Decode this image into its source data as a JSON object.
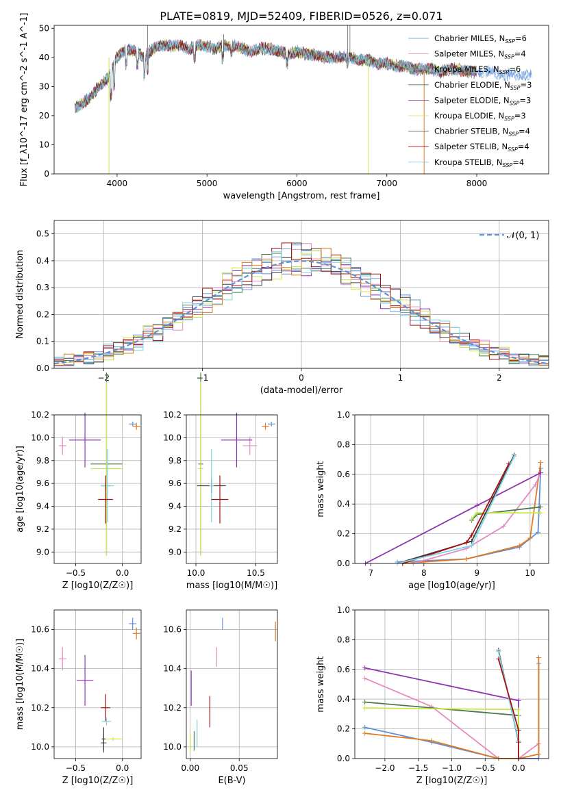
{
  "figure": {
    "title": "PLATE=0819, MJD=52409, FIBERID=0526, z=0.071"
  },
  "colors": {
    "chabrier_miles": "#5f8fd7",
    "salpeter_miles": "#e58ac0",
    "kroupa_miles": "#6b9fdf",
    "chabrier_elodie": "#4b7a4b",
    "salpeter_elodie": "#8e32b0",
    "kroupa_elodie": "#c9e64a",
    "chabrier_stelib": "#3a3a3a",
    "salpeter_stelib": "#a41212",
    "kroupa_stelib": "#7fd3e6",
    "orange": "#e07a21",
    "gauss": "#5b8fd6"
  },
  "chart_data": [
    {
      "id": "spectrum",
      "type": "line",
      "title": "PLATE=0819, MJD=52409, FIBERID=0526, z=0.071",
      "xlabel": "wavelength [Angstrom, rest frame]",
      "ylabel": "Flux [f_λ10^-17 erg cm^-2 s^-1 A^-1]",
      "xlim": [
        3300,
        8800
      ],
      "ylim": [
        0,
        51
      ],
      "xticks": [
        4000,
        5000,
        6000,
        7000,
        8000
      ],
      "yticks": [
        0,
        10,
        20,
        30,
        40,
        50
      ],
      "grid": false,
      "legend_position": "top-right",
      "x": [
        3530,
        3600,
        3700,
        3800,
        3900,
        4000,
        4100,
        4200,
        4300,
        4400,
        4500,
        4600,
        4700,
        4800,
        4900,
        5000,
        5100,
        5200,
        5300,
        5400,
        5500,
        5600,
        5700,
        5800,
        5900,
        6000,
        6100,
        6200,
        6300,
        6400,
        6500,
        6600,
        6700,
        6800,
        6900,
        7000,
        7100,
        7200,
        7300,
        7400,
        7500,
        7600,
        7700,
        7800,
        7900,
        8000,
        8100,
        8200,
        8300,
        8400,
        8500,
        8600,
        8620
      ],
      "series": [
        {
          "name": "Chabrier MILES, N_SSP=6",
          "values": [
            23,
            24,
            26,
            30,
            33,
            40,
            43,
            42,
            40,
            43,
            44,
            44,
            44,
            43,
            44,
            44,
            43,
            44,
            44,
            43,
            42,
            43,
            43,
            42,
            41,
            42,
            41,
            41,
            40,
            40,
            40,
            40,
            39,
            39,
            38,
            38,
            37,
            37,
            36,
            36,
            36,
            35,
            36,
            36,
            35,
            35,
            35,
            35,
            34,
            34,
            34,
            34,
            34
          ]
        }
      ],
      "legend": [
        {
          "label": "Chabrier MILES, N",
          "sub": "SSP",
          "tail": "=6"
        },
        {
          "label": "Salpeter MILES, N",
          "sub": "SSP",
          "tail": "=4"
        },
        {
          "label": "Kroupa MILES, N",
          "sub": "SSP",
          "tail": "=6"
        },
        {
          "label": "Chabrier ELODIE, N",
          "sub": "SSP",
          "tail": "=3"
        },
        {
          "label": "Salpeter ELODIE, N",
          "sub": "SSP",
          "tail": "=3"
        },
        {
          "label": "Kroupa ELODIE, N",
          "sub": "SSP",
          "tail": "=3"
        },
        {
          "label": "Chabrier STELIB, N",
          "sub": "SSP",
          "tail": "=4"
        },
        {
          "label": "Salpeter STELIB, N",
          "sub": "SSP",
          "tail": "=4"
        },
        {
          "label": "Kroupa STELIB, N",
          "sub": "SSP",
          "tail": "=4"
        }
      ]
    },
    {
      "id": "residual-hist",
      "type": "line",
      "xlabel": "(data-model)/error",
      "ylabel": "Normed distribution",
      "xlim": [
        -2.5,
        2.5
      ],
      "ylim": [
        0,
        0.55
      ],
      "xticks": [
        -2,
        -1,
        0,
        1,
        2
      ],
      "yticks": [
        0.0,
        0.1,
        0.2,
        0.3,
        0.4,
        0.5
      ],
      "grid": true,
      "legend": [
        {
          "label": "𝒩(0, 1)"
        }
      ],
      "legend_position": "top-right"
    },
    {
      "id": "age-vs-Z",
      "type": "scatter",
      "xlabel": "Z [log10(Z/Z☉)]",
      "ylabel": "age [log10(age/yr)]",
      "xlim": [
        -0.73,
        0.2
      ],
      "ylim": [
        8.9,
        10.2
      ],
      "xticks": [
        -0.5,
        0.0
      ],
      "yticks": [
        9.0,
        9.2,
        9.4,
        9.6,
        9.8,
        10.0,
        10.2
      ],
      "grid": true,
      "points": [
        {
          "x": 0.11,
          "y": 10.12,
          "xerr": 0.04,
          "yerr": 0.02,
          "color": "chabrier_miles"
        },
        {
          "x": 0.15,
          "y": 10.1,
          "xerr": 0.04,
          "yerr": 0.03,
          "color": "orange"
        },
        {
          "x": -0.64,
          "y": 9.93,
          "xerr": 0.04,
          "yerr": 0.08,
          "color": "salpeter_miles"
        },
        {
          "x": -0.4,
          "y": 9.98,
          "xerr": 0.17,
          "yerr": 0.24,
          "color": "salpeter_elodie"
        },
        {
          "x": -0.17,
          "y": 9.77,
          "xerr": 0.17,
          "yerr": 0.8,
          "color": "chabrier_elodie"
        },
        {
          "x": -0.17,
          "y": 9.73,
          "xerr": 0.17,
          "yerr": 0.76,
          "color": "kroupa_elodie"
        },
        {
          "x": -0.18,
          "y": 9.58,
          "xerr": 0.05,
          "yerr": 0.04,
          "color": "chabrier_stelib"
        },
        {
          "x": -0.16,
          "y": 9.58,
          "xerr": 0.07,
          "yerr": 0.32,
          "color": "kroupa_stelib"
        },
        {
          "x": -0.18,
          "y": 9.46,
          "xerr": 0.08,
          "yerr": 0.21,
          "color": "salpeter_stelib"
        }
      ]
    },
    {
      "id": "age-vs-mass",
      "type": "scatter",
      "xlabel": "mass [log10(M/M☉)]",
      "xlim": [
        9.92,
        10.68
      ],
      "ylim": [
        8.9,
        10.2
      ],
      "xticks": [
        10.0,
        10.5
      ],
      "yticks": [
        9.0,
        9.2,
        9.4,
        9.6,
        9.8,
        10.0,
        10.2
      ],
      "grid": true,
      "points": [
        {
          "x": 10.63,
          "y": 10.12,
          "xerr": 0.03,
          "yerr": 0.02,
          "color": "chabrier_miles"
        },
        {
          "x": 10.58,
          "y": 10.1,
          "xerr": 0.03,
          "yerr": 0.03,
          "color": "orange"
        },
        {
          "x": 10.45,
          "y": 9.93,
          "xerr": 0.06,
          "yerr": 0.08,
          "color": "salpeter_miles"
        },
        {
          "x": 10.34,
          "y": 9.98,
          "xerr": 0.13,
          "yerr": 0.24,
          "color": "salpeter_elodie"
        },
        {
          "x": 10.04,
          "y": 9.77,
          "xerr": 0.02,
          "yerr": 0.8,
          "color": "chabrier_elodie"
        },
        {
          "x": 10.04,
          "y": 9.73,
          "xerr": 0.02,
          "yerr": 0.76,
          "color": "kroupa_elodie"
        },
        {
          "x": 10.13,
          "y": 9.58,
          "xerr": 0.12,
          "yerr": 0.06,
          "color": "chabrier_stelib"
        },
        {
          "x": 10.13,
          "y": 9.58,
          "xerr": 0.02,
          "yerr": 0.32,
          "color": "kroupa_stelib"
        },
        {
          "x": 10.2,
          "y": 9.46,
          "xerr": 0.07,
          "yerr": 0.21,
          "color": "salpeter_stelib"
        }
      ]
    },
    {
      "id": "mass-weight-vs-age",
      "type": "line",
      "xlabel": "age [log10(age/yr)]",
      "ylabel": "mass weight",
      "xlim": [
        6.7,
        10.35
      ],
      "ylim": [
        0.0,
        1.0
      ],
      "xticks": [
        7,
        8,
        9,
        10
      ],
      "yticks": [
        0.0,
        0.2,
        0.4,
        0.6,
        0.8,
        1.0
      ],
      "grid": true,
      "series": [
        {
          "color": "chabrier_miles",
          "x": [
            7.5,
            8.8,
            9.8,
            10.15,
            10.2
          ],
          "values": [
            0.01,
            0.03,
            0.11,
            0.21,
            0.64
          ]
        },
        {
          "color": "orange",
          "x": [
            7.6,
            8.8,
            9.8,
            10.0,
            10.2
          ],
          "values": [
            0.0,
            0.03,
            0.12,
            0.17,
            0.68
          ]
        },
        {
          "color": "salpeter_miles",
          "x": [
            7.8,
            8.8,
            9.5,
            10.1,
            10.2
          ],
          "values": [
            0.0,
            0.1,
            0.25,
            0.53,
            0.61
          ]
        },
        {
          "color": "salpeter_elodie",
          "x": [
            6.9,
            9.0,
            10.2
          ],
          "values": [
            0.0,
            0.39,
            0.61
          ]
        },
        {
          "color": "chabrier_elodie",
          "x": [
            8.9,
            9.0,
            10.2
          ],
          "values": [
            0.29,
            0.33,
            0.38
          ]
        },
        {
          "color": "kroupa_elodie",
          "x": [
            8.9,
            9.0,
            10.2
          ],
          "values": [
            0.3,
            0.34,
            0.34
          ]
        },
        {
          "color": "chabrier_stelib",
          "x": [
            7.5,
            8.9,
            9.7
          ],
          "values": [
            0.0,
            0.15,
            0.73
          ]
        },
        {
          "color": "salpeter_stelib",
          "x": [
            7.6,
            8.8,
            8.9,
            9.6
          ],
          "values": [
            0.0,
            0.14,
            0.19,
            0.67
          ]
        },
        {
          "color": "kroupa_stelib",
          "x": [
            7.5,
            8.9,
            9.7
          ],
          "values": [
            0.0,
            0.12,
            0.72
          ]
        }
      ]
    },
    {
      "id": "mass-vs-Z",
      "type": "scatter",
      "xlabel": "Z [log10(Z/Z☉)]",
      "ylabel": "mass [log10(M/M☉)]",
      "xlim": [
        -0.73,
        0.2
      ],
      "ylim": [
        9.94,
        10.7
      ],
      "xticks": [
        -0.5,
        0.0
      ],
      "yticks": [
        10.0,
        10.2,
        10.4,
        10.6
      ],
      "grid": true,
      "points": [
        {
          "x": 0.11,
          "y": 10.63,
          "xerr": 0.04,
          "yerr": 0.03,
          "color": "chabrier_miles"
        },
        {
          "x": 0.15,
          "y": 10.58,
          "xerr": 0.04,
          "yerr": 0.03,
          "color": "orange"
        },
        {
          "x": -0.64,
          "y": 10.45,
          "xerr": 0.04,
          "yerr": 0.06,
          "color": "salpeter_miles"
        },
        {
          "x": -0.4,
          "y": 10.34,
          "xerr": 0.09,
          "yerr": 0.13,
          "color": "salpeter_elodie"
        },
        {
          "x": -0.18,
          "y": 10.2,
          "xerr": 0.05,
          "yerr": 0.07,
          "color": "salpeter_stelib"
        },
        {
          "x": -0.17,
          "y": 10.13,
          "xerr": 0.05,
          "yerr": 0.02,
          "color": "kroupa_stelib"
        },
        {
          "x": -0.2,
          "y": 10.02,
          "xerr": 0.03,
          "yerr": 0.05,
          "color": "chabrier_elodie"
        },
        {
          "x": -0.1,
          "y": 10.04,
          "xerr": 0.1,
          "yerr": 0.01,
          "color": "kroupa_elodie"
        },
        {
          "x": -0.2,
          "y": 10.04,
          "xerr": 0.02,
          "yerr": 0.06,
          "color": "chabrier_stelib"
        }
      ]
    },
    {
      "id": "mass-vs-ebv",
      "type": "scatter",
      "xlabel": "E(B-V)",
      "xlim": [
        -0.004,
        0.089
      ],
      "ylim": [
        9.94,
        10.7
      ],
      "xticks": [
        0.0,
        0.05
      ],
      "yticks": [
        10.0,
        10.2,
        10.4,
        10.6
      ],
      "grid": true,
      "points": [
        {
          "x": 0.033,
          "y": 10.63,
          "yerr": 0.03,
          "color": "chabrier_miles"
        },
        {
          "x": 0.087,
          "y": 10.59,
          "yerr": 0.05,
          "color": "orange"
        },
        {
          "x": 0.027,
          "y": 10.46,
          "yerr": 0.05,
          "color": "salpeter_miles"
        },
        {
          "x": 0.001,
          "y": 10.3,
          "yerr": 0.09,
          "color": "salpeter_elodie"
        },
        {
          "x": 0.02,
          "y": 10.18,
          "yerr": 0.08,
          "color": "salpeter_stelib"
        },
        {
          "x": 0.007,
          "y": 10.07,
          "yerr": 0.07,
          "color": "kroupa_stelib"
        },
        {
          "x": 0.004,
          "y": 10.03,
          "yerr": 0.05,
          "color": "chabrier_elodie"
        },
        {
          "x": 0.0,
          "y": 10.02,
          "yerr": 0.05,
          "color": "kroupa_elodie"
        }
      ]
    },
    {
      "id": "mass-weight-vs-Z",
      "type": "line",
      "xlabel": "Z [log10(Z/Z☉)]",
      "ylabel": "mass weight",
      "xlim": [
        -2.45,
        0.45
      ],
      "ylim": [
        0.0,
        1.0
      ],
      "xticks": [
        -2.0,
        -1.5,
        -1.0,
        -0.5,
        0.0
      ],
      "yticks": [
        0.0,
        0.2,
        0.4,
        0.6,
        0.8,
        1.0
      ],
      "grid": true,
      "series": [
        {
          "color": "salpeter_elodie",
          "x": [
            -2.3,
            0.0,
            0.0
          ],
          "values": [
            0.61,
            0.39,
            0.0
          ]
        },
        {
          "color": "salpeter_miles",
          "x": [
            -2.3,
            -1.3,
            -0.3,
            0.0,
            0.3,
            0.3
          ],
          "values": [
            0.54,
            0.35,
            0.0,
            0.0,
            0.1,
            0.0
          ]
        },
        {
          "color": "chabrier_elodie",
          "x": [
            -2.3,
            0.0,
            0.0
          ],
          "values": [
            0.38,
            0.29,
            0.0
          ]
        },
        {
          "color": "kroupa_elodie",
          "x": [
            -2.3,
            0.0,
            0.0
          ],
          "values": [
            0.34,
            0.33,
            0.0
          ]
        },
        {
          "color": "chabrier_miles",
          "x": [
            -2.3,
            -1.3,
            -0.3,
            0.0,
            0.3,
            0.3
          ],
          "values": [
            0.21,
            0.11,
            0.0,
            0.0,
            0.0,
            0.64
          ]
        },
        {
          "color": "orange",
          "x": [
            -2.3,
            -1.3,
            -0.3,
            0.0,
            0.3,
            0.3
          ],
          "values": [
            0.17,
            0.12,
            0.0,
            0.0,
            0.03,
            0.68
          ]
        },
        {
          "color": "chabrier_stelib",
          "x": [
            -0.3,
            0.0,
            0.0
          ],
          "values": [
            0.73,
            0.11,
            0.0
          ]
        },
        {
          "color": "kroupa_stelib",
          "x": [
            -0.3,
            0.0,
            0.0
          ],
          "values": [
            0.72,
            0.12,
            0.0
          ]
        },
        {
          "color": "salpeter_stelib",
          "x": [
            -0.3,
            0.0,
            0.0
          ],
          "values": [
            0.67,
            0.19,
            0.0
          ]
        }
      ]
    }
  ]
}
